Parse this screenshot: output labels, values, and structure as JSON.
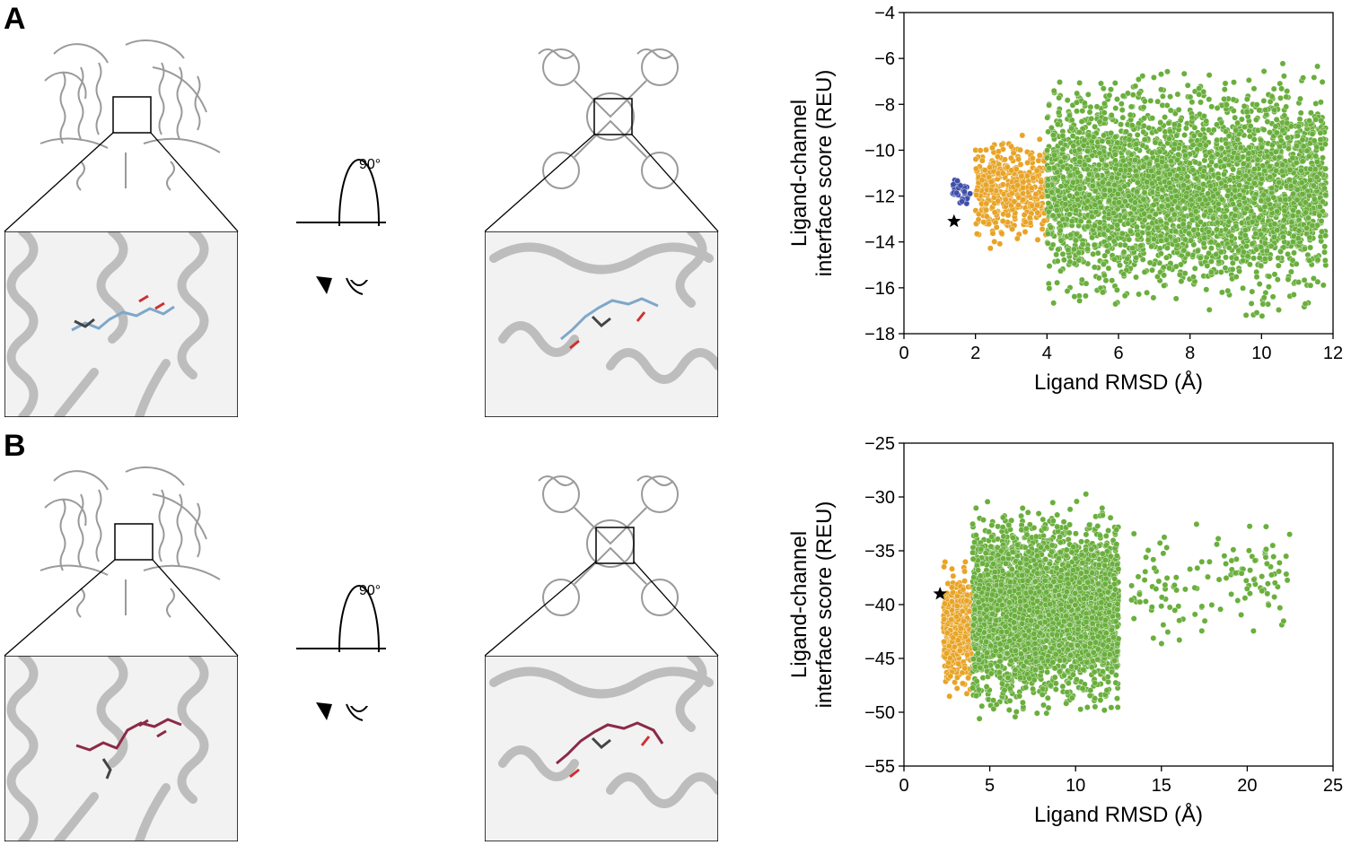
{
  "panels": [
    {
      "label": "A",
      "rotation_label": "90°",
      "ligand_color": "#7fa7c9",
      "chart_data": {
        "type": "scatter",
        "xlabel": "Ligand RMSD (Å)",
        "ylabel_line1": "Ligand-channel",
        "ylabel_line2": "interface score (REU)",
        "xlim": [
          0,
          12
        ],
        "ylim": [
          -18,
          -4
        ],
        "xticks": [
          0,
          2,
          4,
          6,
          8,
          10,
          12
        ],
        "yticks": [
          -4,
          -6,
          -8,
          -10,
          -12,
          -14,
          -16,
          -18
        ],
        "grid": false,
        "legend": "none",
        "marker_reference": {
          "x": 1.4,
          "y": -13.1,
          "marker": "star",
          "color": "#000000"
        },
        "series": [
          {
            "color": "#3f4fa8",
            "x_range": [
              1.35,
              1.85
            ],
            "y_range": [
              -12.8,
              -10.8
            ],
            "count": 30
          },
          {
            "color": "#e8a427",
            "x_range": [
              2.0,
              4.0
            ],
            "y_range": [
              -14.6,
              -8.8
            ],
            "count": 450
          },
          {
            "color": "#6aaf3d",
            "x_range": [
              4.0,
              11.8
            ],
            "y_range": [
              -17.6,
              -5.8
            ],
            "count": 3500
          }
        ]
      }
    },
    {
      "label": "B",
      "rotation_label": "90°",
      "ligand_color": "#8b2a47",
      "chart_data": {
        "type": "scatter",
        "xlabel": "Ligand RMSD (Å)",
        "ylabel_line1": "Ligand-channel",
        "ylabel_line2": "interface score (REU)",
        "xlim": [
          0,
          25
        ],
        "ylim": [
          -55,
          -25
        ],
        "xticks": [
          0,
          5,
          10,
          15,
          20,
          25
        ],
        "yticks": [
          -25,
          -30,
          -35,
          -40,
          -45,
          -50,
          -55
        ],
        "grid": false,
        "legend": "none",
        "marker_reference": {
          "x": 2.1,
          "y": -39.0,
          "marker": "star",
          "color": "#000000"
        },
        "series": [
          {
            "color": "#e8a427",
            "x_range": [
              2.3,
              4.0
            ],
            "y_range": [
              -49.5,
              -35.0
            ],
            "count": 400
          },
          {
            "color": "#6aaf3d",
            "x_range": [
              4.0,
              12.5
            ],
            "y_range": [
              -51.5,
              -29.5
            ],
            "count": 3500
          },
          {
            "color": "#6aaf3d",
            "x_range": [
              13.0,
              22.5
            ],
            "y_range": [
              -45.0,
              -30.5
            ],
            "count": 130
          }
        ]
      }
    }
  ]
}
